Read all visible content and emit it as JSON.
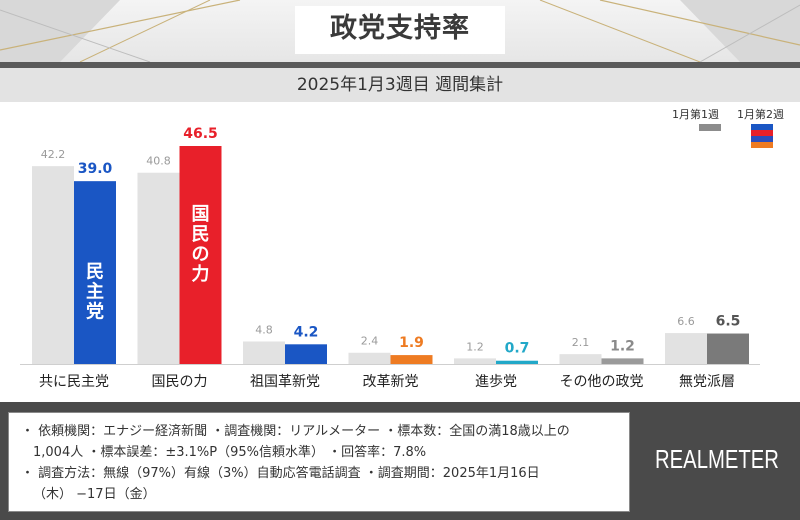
{
  "header": {
    "title": "政党支持率",
    "subtitle": "2025年1月3週目  週間集計"
  },
  "legend": {
    "week1_label": "1月第1週",
    "week2_label": "1月第2週",
    "week1_color": "#8c8c8c",
    "week2_colors": [
      "#1a56c4",
      "#e8202a",
      "#2a4dbd",
      "#ee7b22",
      "#22a8c8"
    ]
  },
  "chart_data": {
    "type": "bar",
    "categories": [
      "共に民主党",
      "国民の力",
      "祖国革新党",
      "改革新党",
      "進歩党",
      "その他の政党",
      "無党派層"
    ],
    "series": [
      {
        "name": "1月第1週",
        "values": [
          42.2,
          40.8,
          4.8,
          2.4,
          1.2,
          2.1,
          6.6
        ]
      },
      {
        "name": "1月第2週",
        "values": [
          39.0,
          46.5,
          4.2,
          1.9,
          0.7,
          1.2,
          6.5
        ]
      }
    ],
    "prev_color": "#e2e2e2",
    "current_colors": [
      "#1a56c4",
      "#e8202a",
      "#1a56c4",
      "#ee7b22",
      "#22a8c8",
      "#9a9a9a",
      "#7a7a7a"
    ],
    "current_label_colors": [
      "#1a56c4",
      "#e8202a",
      "#1a56c4",
      "#ee7b22",
      "#22a8c8",
      "#8a8a8a",
      "#555555"
    ],
    "bar_inner_labels": [
      "民主党",
      "国民の力"
    ],
    "ylim": [
      0,
      50
    ],
    "grid": false,
    "legend_position": "top-right"
  },
  "footer": {
    "note_line1": "・ 依頼機関：エナジー経済新聞  ・調査機関：リアルメーター  ・標本数：全国の満18歳以上の",
    "note_line2": "1,004人  ・標本誤差：±3.1%P（95%信頼水準）  ・回答率：7.8%",
    "note_line3": "・ 調査方法：無線（97%）有線（3%）自動応答電話調査  ・調査期間：2025年1月16日",
    "note_line4": "（木）  −17日（金）",
    "logo": "REALMETER"
  }
}
